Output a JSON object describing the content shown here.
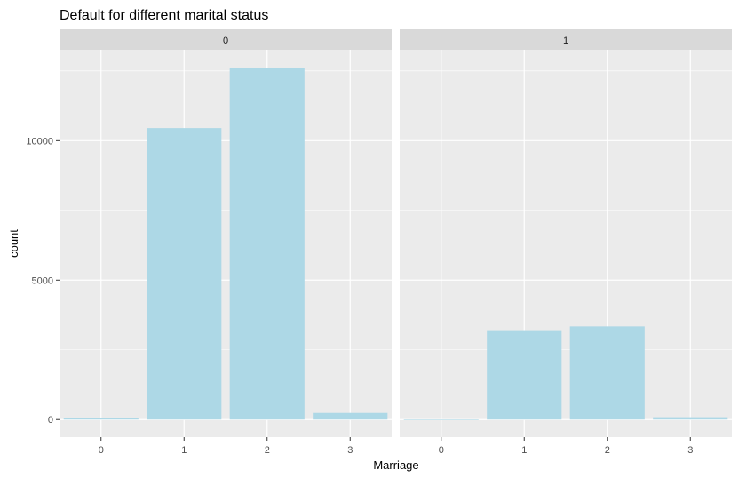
{
  "chart_data": {
    "type": "bar",
    "title": "Default for different marital status",
    "xlabel": "Marriage",
    "ylabel": "count",
    "facet_by": "default",
    "categories": [
      "0",
      "1",
      "2",
      "3"
    ],
    "y_ticks": [
      0,
      5000,
      10000
    ],
    "y_tick_labels": [
      "0",
      "5000",
      "10000"
    ],
    "ylim": [
      -630,
      13260
    ],
    "grid": true,
    "panels": [
      {
        "label": "0",
        "values": [
          49,
          10453,
          12623,
          239
        ]
      },
      {
        "label": "1",
        "values": [
          5,
          3206,
          3341,
          84
        ]
      }
    ],
    "colors": {
      "bar": "#ADD8E6",
      "panel_bg": "#EBEBEB",
      "grid": "#FFFFFF",
      "strip_bg": "#D9D9D9",
      "text": "#000000",
      "tick_text": "#4D4D4D"
    }
  }
}
